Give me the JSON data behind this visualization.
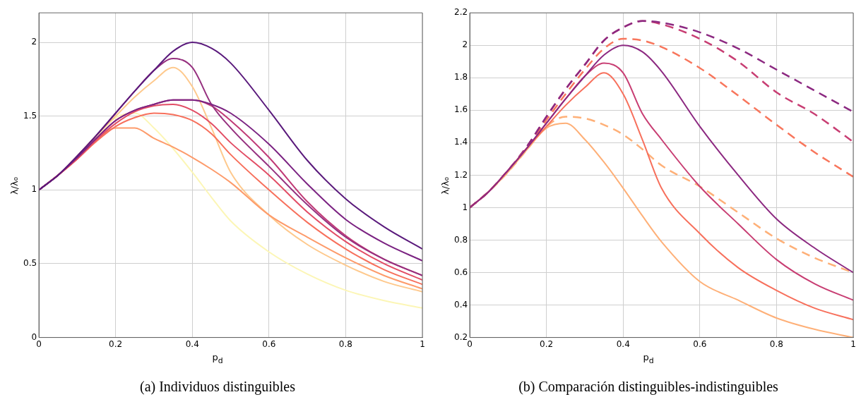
{
  "chart_data": [
    {
      "type": "line",
      "title": "(a) Individuos distinguibles",
      "xlabel": "p$_{d}$",
      "ylabel": "λ/λ₀",
      "x": [
        0,
        0.05,
        0.1,
        0.15,
        0.2,
        0.25,
        0.3,
        0.35,
        0.4,
        0.45,
        0.5,
        0.6,
        0.7,
        0.8,
        0.9,
        1
      ],
      "xlim": [
        0,
        1
      ],
      "xticks": [
        0,
        0.2,
        0.4,
        0.6,
        0.8,
        1
      ],
      "ylim": [
        0,
        2.2
      ],
      "yticks": [
        0,
        0.5,
        1,
        1.5,
        2
      ],
      "grid": true,
      "line_style": "solid",
      "series": [
        {
          "color": "#5a1a7c",
          "values": [
            1,
            1.1,
            1.23,
            1.37,
            1.52,
            1.67,
            1.81,
            1.94,
            2.0,
            1.96,
            1.86,
            1.54,
            1.2,
            0.94,
            0.75,
            0.6
          ]
        },
        {
          "color": "#7b2382",
          "values": [
            1,
            1.1,
            1.22,
            1.35,
            1.47,
            1.54,
            1.58,
            1.61,
            1.61,
            1.58,
            1.52,
            1.31,
            1.04,
            0.8,
            0.64,
            0.52
          ]
        },
        {
          "color": "#96307f",
          "values": [
            1,
            1.1,
            1.23,
            1.37,
            1.52,
            1.67,
            1.81,
            1.89,
            1.83,
            1.58,
            1.42,
            1.16,
            0.9,
            0.68,
            0.53,
            0.42
          ]
        },
        {
          "color": "#c03a76",
          "values": [
            1,
            1.1,
            1.22,
            1.35,
            1.47,
            1.54,
            1.58,
            1.61,
            1.61,
            1.57,
            1.47,
            1.22,
            0.92,
            0.69,
            0.53,
            0.42
          ]
        },
        {
          "color": "#e24d65",
          "values": [
            1,
            1.1,
            1.21,
            1.34,
            1.45,
            1.53,
            1.57,
            1.58,
            1.54,
            1.45,
            1.32,
            1.1,
            0.85,
            0.65,
            0.5,
            0.39
          ]
        },
        {
          "color": "#f7705c",
          "values": [
            1,
            1.1,
            1.21,
            1.33,
            1.43,
            1.49,
            1.52,
            1.51,
            1.47,
            1.38,
            1.24,
            1.0,
            0.78,
            0.6,
            0.46,
            0.36
          ]
        },
        {
          "color": "#fd9b6b",
          "values": [
            1,
            1.1,
            1.21,
            1.33,
            1.42,
            1.42,
            1.35,
            1.29,
            1.22,
            1.14,
            1.05,
            0.83,
            0.68,
            0.54,
            0.42,
            0.33
          ]
        },
        {
          "color": "#fec98d",
          "values": [
            1,
            1.1,
            1.23,
            1.37,
            1.5,
            1.63,
            1.74,
            1.83,
            1.7,
            1.42,
            1.12,
            0.83,
            0.63,
            0.49,
            0.38,
            0.31
          ]
        },
        {
          "color": "#fcf6b6",
          "values": [
            1,
            1.1,
            1.22,
            1.36,
            1.49,
            1.52,
            1.42,
            1.28,
            1.12,
            0.95,
            0.79,
            0.58,
            0.43,
            0.32,
            0.25,
            0.2
          ]
        }
      ]
    },
    {
      "type": "line",
      "title": "(b) Comparación distinguibles-indistinguibles",
      "xlabel": "p$_{d}$",
      "ylabel": "λ/λ₀",
      "x": [
        0,
        0.05,
        0.1,
        0.15,
        0.2,
        0.25,
        0.3,
        0.35,
        0.4,
        0.45,
        0.5,
        0.6,
        0.7,
        0.8,
        0.9,
        1
      ],
      "xlim": [
        0,
        1
      ],
      "xticks": [
        0,
        0.2,
        0.4,
        0.6,
        0.8,
        1
      ],
      "ylim": [
        0.2,
        2.2
      ],
      "yticks": [
        0.2,
        0.4,
        0.6,
        0.8,
        1,
        1.2,
        1.4,
        1.6,
        1.8,
        2,
        2.2
      ],
      "grid": true,
      "line_style": "solid",
      "series": [
        {
          "color": "#8c2981",
          "values": [
            1,
            1.1,
            1.23,
            1.37,
            1.52,
            1.67,
            1.81,
            1.94,
            2.0,
            1.96,
            1.84,
            1.5,
            1.2,
            0.93,
            0.75,
            0.6
          ]
        },
        {
          "color": "#c83e73",
          "values": [
            1,
            1.1,
            1.23,
            1.37,
            1.52,
            1.67,
            1.81,
            1.89,
            1.83,
            1.58,
            1.42,
            1.13,
            0.9,
            0.68,
            0.53,
            0.43
          ]
        },
        {
          "color": "#f7705c",
          "values": [
            1,
            1.1,
            1.23,
            1.37,
            1.5,
            1.63,
            1.74,
            1.83,
            1.7,
            1.42,
            1.12,
            0.84,
            0.63,
            0.49,
            0.38,
            0.31
          ]
        },
        {
          "color": "#feb078",
          "values": [
            1,
            1.1,
            1.22,
            1.36,
            1.49,
            1.52,
            1.42,
            1.28,
            1.12,
            0.95,
            0.79,
            0.545,
            0.43,
            0.32,
            0.25,
            0.2
          ]
        },
        {
          "color": "#8c2981",
          "line_style": "dashed",
          "values": [
            1,
            1.1,
            1.23,
            1.38,
            1.56,
            1.73,
            1.88,
            2.03,
            2.11,
            2.15,
            2.14,
            2.08,
            1.98,
            1.85,
            1.72,
            1.59
          ]
        },
        {
          "color": "#c83e73",
          "line_style": "dashed",
          "values": [
            1,
            1.1,
            1.23,
            1.38,
            1.56,
            1.73,
            1.88,
            2.03,
            2.11,
            2.15,
            2.13,
            2.04,
            1.9,
            1.71,
            1.575,
            1.405
          ]
        },
        {
          "color": "#f8765c",
          "line_style": "dashed",
          "values": [
            1,
            1.1,
            1.23,
            1.37,
            1.54,
            1.7,
            1.85,
            1.98,
            2.04,
            2.03,
            1.99,
            1.86,
            1.69,
            1.51,
            1.34,
            1.19
          ]
        },
        {
          "color": "#feb078",
          "line_style": "dashed",
          "values": [
            1,
            1.1,
            1.22,
            1.36,
            1.5,
            1.56,
            1.55,
            1.51,
            1.45,
            1.36,
            1.26,
            1.13,
            0.97,
            0.81,
            0.69,
            0.6
          ]
        }
      ]
    }
  ]
}
